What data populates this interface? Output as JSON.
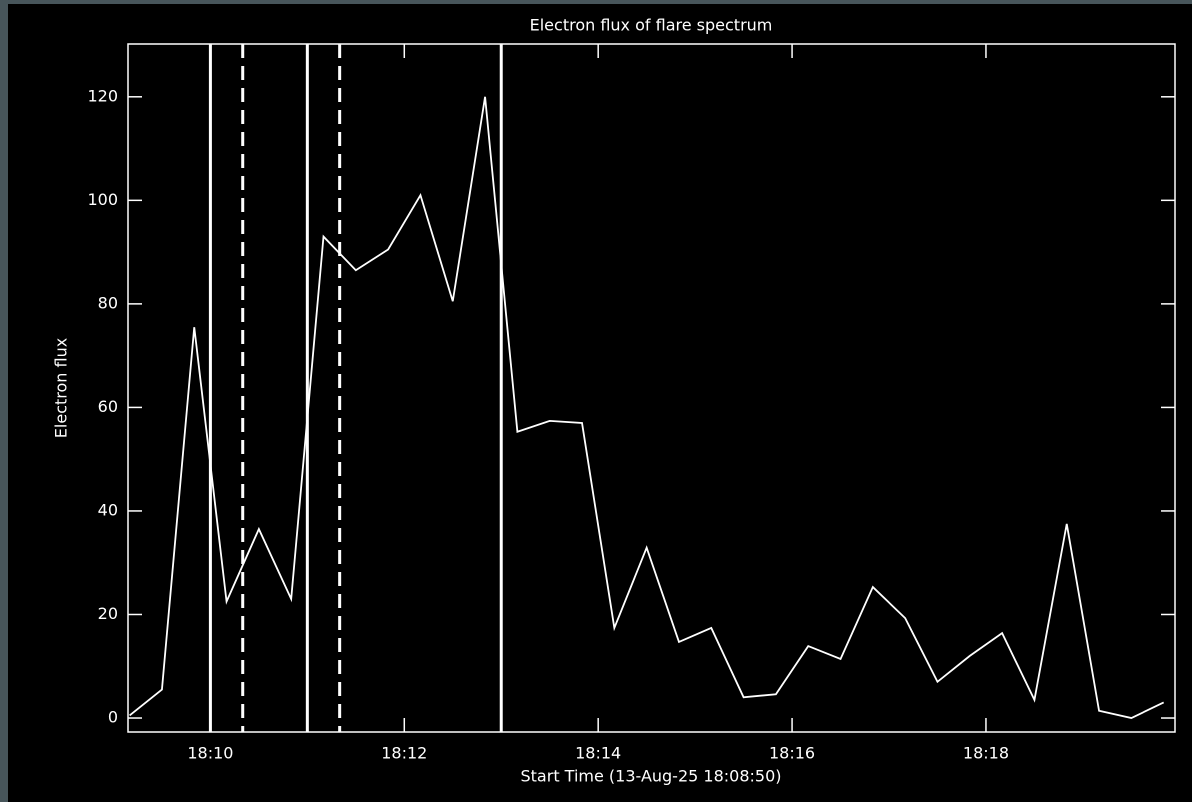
{
  "chart_data": {
    "type": "line",
    "title": "Electron flux of flare spectrum",
    "x_label": "Start Time (13-Aug-25 18:08:50)",
    "y_label": "Electron flux",
    "x": [
      550,
      570,
      590,
      610,
      630,
      650,
      670,
      690,
      710,
      730,
      750,
      770,
      790,
      810,
      830,
      850,
      870,
      890,
      910,
      930,
      950,
      970,
      990,
      1010,
      1030,
      1050,
      1070,
      1090,
      1110,
      1130,
      1150,
      1170,
      1190
    ],
    "series": [
      {
        "color": "#ffffff",
        "values": [
          0.5,
          5.5,
          75.5,
          22.5,
          36.5,
          23,
          93,
          86.5,
          90.5,
          101,
          80.5,
          120,
          55.3,
          57.4,
          57,
          17.4,
          32.9,
          14.7,
          17.4,
          4,
          4.6,
          13.9,
          11.4,
          25.3,
          19.3,
          7,
          12,
          16.4,
          3.5,
          37.5,
          1.4,
          0,
          3
        ]
      }
    ],
    "vlines": [
      {
        "x": 600,
        "style": "solid"
      },
      {
        "x": 620,
        "style": "dashed"
      },
      {
        "x": 660,
        "style": "solid"
      },
      {
        "x": 680,
        "style": "dashed"
      },
      {
        "x": 780,
        "style": "solid"
      }
    ],
    "xlim": [
      549,
      1197
    ],
    "ylim": [
      -2.7,
      130.2
    ],
    "xticks": [
      {
        "value": 600,
        "label": "18:10"
      },
      {
        "value": 720,
        "label": "18:12"
      },
      {
        "value": 840,
        "label": "18:14"
      },
      {
        "value": 960,
        "label": "18:16"
      },
      {
        "value": 1080,
        "label": "18:18"
      }
    ],
    "yticks": [
      0,
      20,
      40,
      60,
      80,
      100,
      120
    ]
  }
}
